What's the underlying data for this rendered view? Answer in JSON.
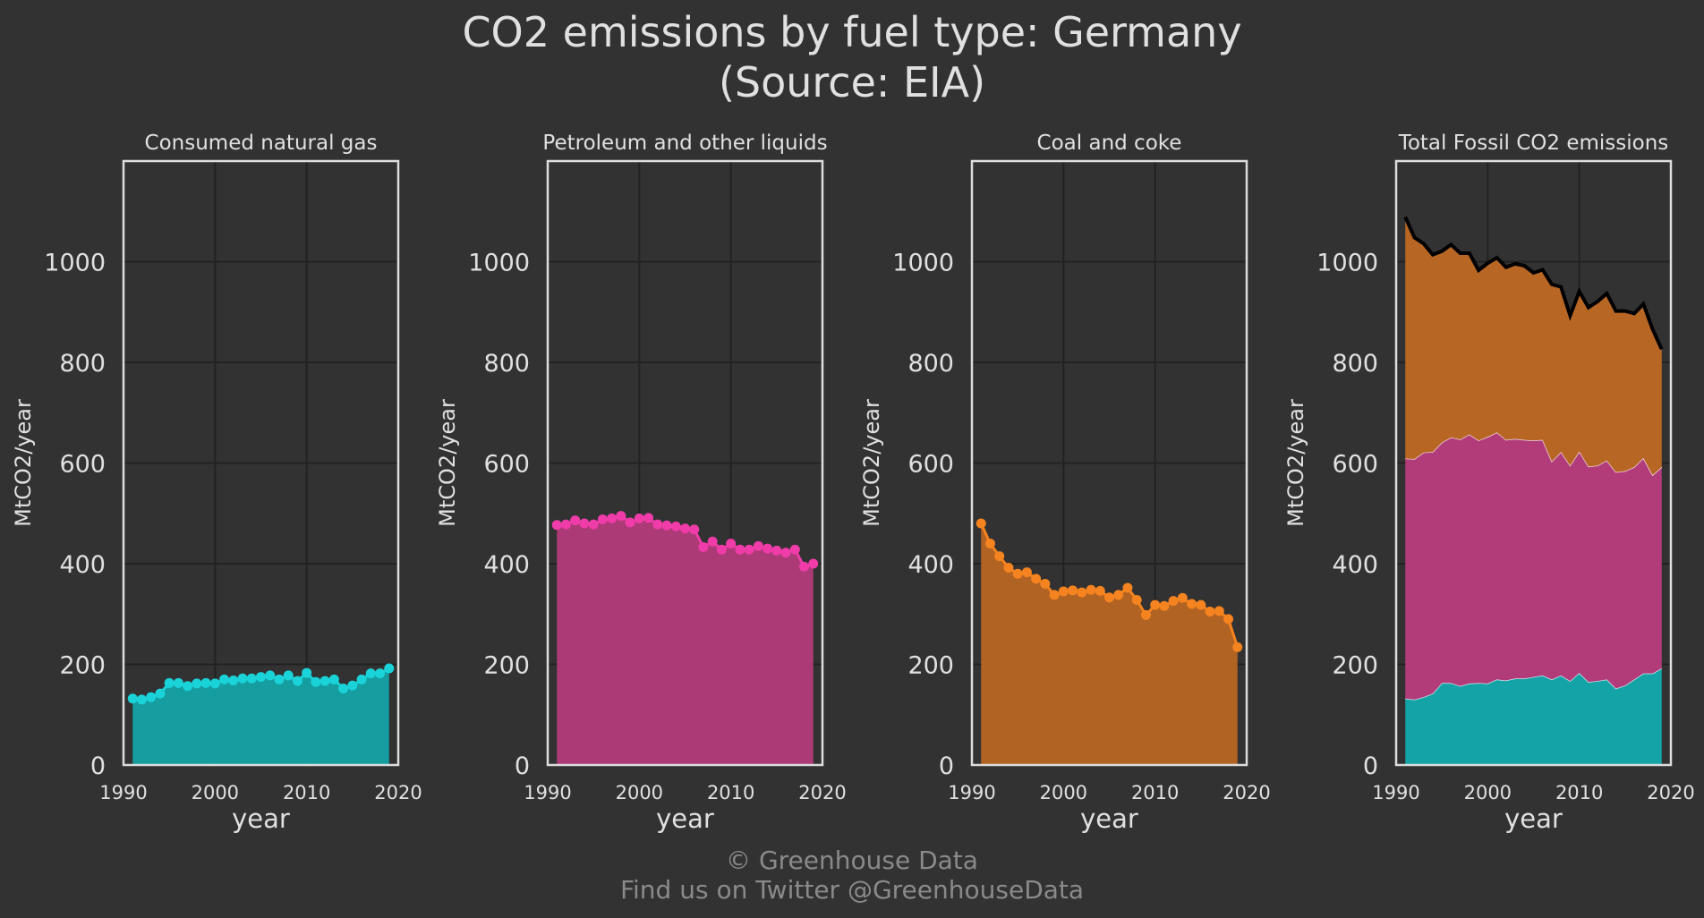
{
  "title_line1": "CO2 emissions by fuel type: Germany",
  "title_line2": "(Source: EIA)",
  "footer_line1": "© Greenhouse Data",
  "footer_line2": "Find us on Twitter @GreenhouseData",
  "colors": {
    "background": "#323232",
    "grid": "#222222",
    "frame": "#dddddd",
    "gas": "#1ad3d9",
    "gas_fill": "#14a3a6",
    "petroleum": "#f03ca8",
    "petroleum_fill": "#b23b7a",
    "coal": "#f5831f",
    "coal_fill": "#b86623",
    "total_line": "#000000",
    "boundary_line": "#ffffff"
  },
  "chart_data": [
    {
      "type": "area",
      "title": "Consumed natural gas",
      "xlabel": "year",
      "ylabel": "MtCO2/year",
      "xlim": [
        1990,
        2020
      ],
      "ylim": [
        0,
        1200
      ],
      "xticks": [
        1990,
        2000,
        2010,
        2020
      ],
      "yticks": [
        0,
        200,
        400,
        600,
        800,
        1000
      ],
      "grid": true,
      "markers": true,
      "color_key": "gas",
      "x": [
        1991,
        1992,
        1993,
        1994,
        1995,
        1996,
        1997,
        1998,
        1999,
        2000,
        2001,
        2002,
        2003,
        2004,
        2005,
        2006,
        2007,
        2008,
        2009,
        2010,
        2011,
        2012,
        2013,
        2014,
        2015,
        2016,
        2017,
        2018,
        2019
      ],
      "values": [
        132,
        130,
        135,
        142,
        163,
        163,
        157,
        162,
        163,
        162,
        170,
        168,
        172,
        172,
        175,
        178,
        170,
        178,
        167,
        183,
        165,
        167,
        170,
        152,
        158,
        170,
        182,
        182,
        192
      ]
    },
    {
      "type": "area",
      "title": "Petroleum and other liquids",
      "xlabel": "year",
      "ylabel": "MtCO2/year",
      "xlim": [
        1990,
        2020
      ],
      "ylim": [
        0,
        1200
      ],
      "xticks": [
        1990,
        2000,
        2010,
        2020
      ],
      "yticks": [
        0,
        200,
        400,
        600,
        800,
        1000
      ],
      "grid": true,
      "markers": true,
      "color_key": "petroleum",
      "x": [
        1991,
        1992,
        1993,
        1994,
        1995,
        1996,
        1997,
        1998,
        1999,
        2000,
        2001,
        2002,
        2003,
        2004,
        2005,
        2006,
        2007,
        2008,
        2009,
        2010,
        2011,
        2012,
        2013,
        2014,
        2015,
        2016,
        2017,
        2018,
        2019
      ],
      "values": [
        477,
        478,
        486,
        480,
        478,
        488,
        490,
        495,
        482,
        490,
        491,
        478,
        476,
        474,
        470,
        468,
        433,
        444,
        428,
        440,
        428,
        428,
        435,
        430,
        426,
        422,
        428,
        394,
        400
      ]
    },
    {
      "type": "area",
      "title": "Coal and coke",
      "xlabel": "year",
      "ylabel": "MtCO2/year",
      "xlim": [
        1990,
        2020
      ],
      "ylim": [
        0,
        1200
      ],
      "xticks": [
        1990,
        2000,
        2010,
        2020
      ],
      "yticks": [
        0,
        200,
        400,
        600,
        800,
        1000
      ],
      "grid": true,
      "markers": true,
      "color_key": "coal",
      "x": [
        1991,
        1992,
        1993,
        1994,
        1995,
        1996,
        1997,
        1998,
        1999,
        2000,
        2001,
        2002,
        2003,
        2004,
        2005,
        2006,
        2007,
        2008,
        2009,
        2010,
        2011,
        2012,
        2013,
        2014,
        2015,
        2016,
        2017,
        2018,
        2019
      ],
      "values": [
        480,
        440,
        415,
        392,
        380,
        383,
        370,
        360,
        338,
        345,
        347,
        343,
        348,
        346,
        333,
        338,
        352,
        328,
        298,
        318,
        316,
        326,
        332,
        320,
        318,
        305,
        306,
        290,
        234
      ]
    },
    {
      "type": "stacked-area",
      "title": "Total Fossil CO2 emissions",
      "xlabel": "year",
      "ylabel": "MtCO2/year",
      "xlim": [
        1990,
        2020
      ],
      "ylim": [
        0,
        1200
      ],
      "xticks": [
        1990,
        2000,
        2010,
        2020
      ],
      "yticks": [
        0,
        200,
        400,
        600,
        800,
        1000
      ],
      "grid": true,
      "markers": false,
      "stack_order": [
        "gas",
        "petroleum",
        "coal"
      ],
      "x": [
        1991,
        1992,
        1993,
        1994,
        1995,
        1996,
        1997,
        1998,
        1999,
        2000,
        2001,
        2002,
        2003,
        2004,
        2005,
        2006,
        2007,
        2008,
        2009,
        2010,
        2011,
        2012,
        2013,
        2014,
        2015,
        2016,
        2017,
        2018,
        2019
      ],
      "total": [
        1089,
        1048,
        1036,
        1014,
        1021,
        1034,
        1017,
        1017,
        983,
        997,
        1008,
        989,
        996,
        992,
        978,
        984,
        955,
        950,
        893,
        941,
        909,
        921,
        937,
        902,
        902,
        897,
        916,
        866,
        826
      ]
    }
  ]
}
